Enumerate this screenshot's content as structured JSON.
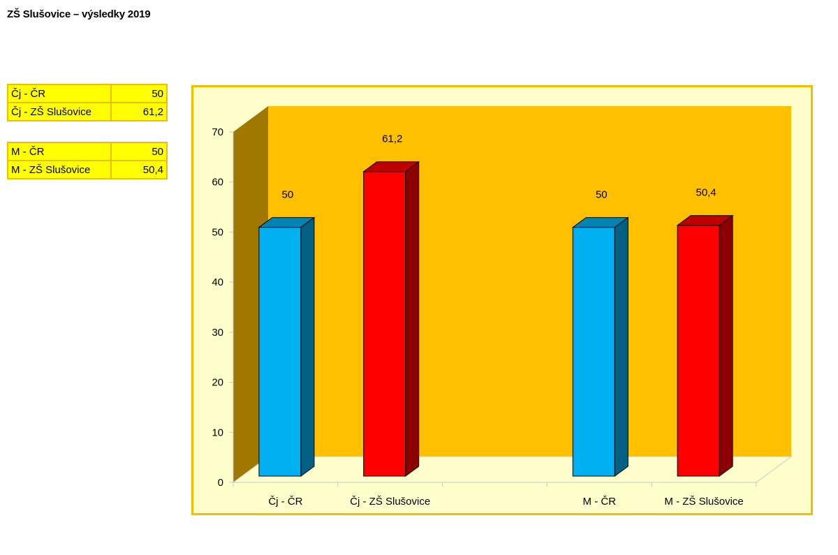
{
  "title": "ZŠ Slušovice – výsledky 2019",
  "tables": [
    {
      "rows": [
        {
          "label": "Čj - ČR",
          "value": "50"
        },
        {
          "label": "Čj - ZŠ Slušovice",
          "value": "61,2"
        }
      ]
    },
    {
      "rows": [
        {
          "label": "M - ČR",
          "value": "50"
        },
        {
          "label": "M - ZŠ Slušovice",
          "value": "50,4"
        }
      ]
    }
  ],
  "chart_data": {
    "type": "bar",
    "categories": [
      "Čj - ČR",
      "Čj - ZŠ Slušovice",
      "",
      "M - ČR",
      "M - ZŠ Slušovice"
    ],
    "values": [
      50,
      61.2,
      null,
      50,
      50.4
    ],
    "data_labels": [
      "50",
      "61,2",
      "",
      "50",
      "50,4"
    ],
    "ylim": [
      0,
      70
    ],
    "yticks": [
      0,
      10,
      20,
      30,
      40,
      50,
      60,
      70
    ],
    "grid": false,
    "legend": "none",
    "bar_colors": [
      "#00b0f0",
      "#ff0000",
      "",
      "#00b0f0",
      "#ff0000"
    ],
    "back_wall_color": "#ffc000",
    "side_wall_color": "#a07800",
    "floor_color": "#ffffcc",
    "background_color": "#ffffcc",
    "border_color": "#f0c000"
  }
}
